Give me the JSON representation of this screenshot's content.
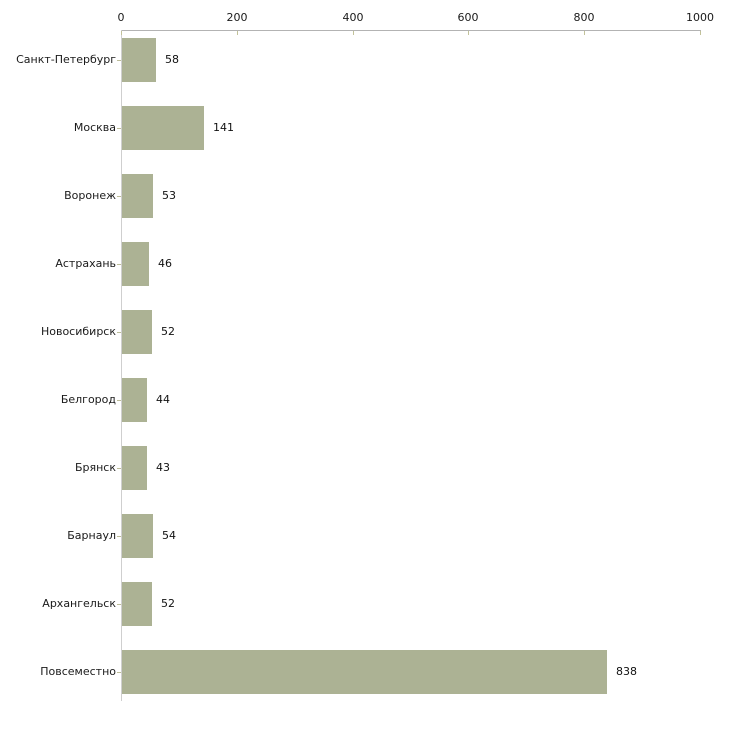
{
  "chart_data": {
    "type": "bar",
    "orientation": "horizontal",
    "title": "",
    "xlabel": "",
    "ylabel": "",
    "categories": [
      "Санкт-Петербург",
      "Москва",
      "Воронеж",
      "Астрахань",
      "Новосибирск",
      "Белгород",
      "Брянск",
      "Барнаул",
      "Архангельск",
      "Повсеместно"
    ],
    "values": [
      58,
      141,
      53,
      46,
      52,
      44,
      43,
      54,
      52,
      838
    ],
    "value_labels": [
      "58",
      "141",
      "53",
      "46",
      "52",
      "44",
      "43",
      "54",
      "52",
      "838"
    ],
    "x_ticks": [
      0,
      200,
      400,
      600,
      800,
      1000
    ],
    "x_tick_labels": [
      "0",
      "200",
      "400",
      "600",
      "800",
      "1000"
    ],
    "xlim": [
      0,
      1000
    ],
    "grid": false,
    "legend": false,
    "bar_color": "#acb294",
    "axis_line_color": "#b3b3b3",
    "tick_color": "#c2c29a",
    "text_color": "#1a1a1a"
  }
}
